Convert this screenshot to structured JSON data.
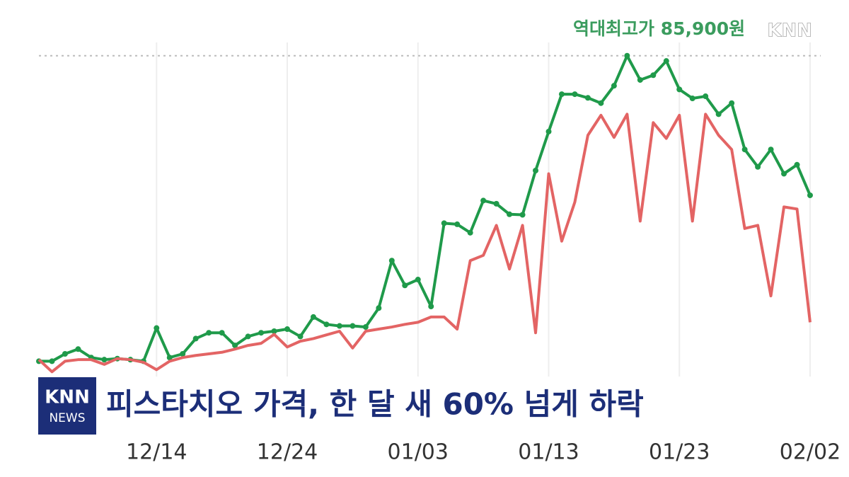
{
  "chart_data": {
    "type": "line",
    "annotation": "역대최고가 85,900원",
    "reference_line": 85900,
    "categories": [
      null,
      null,
      null,
      null,
      null,
      null,
      null,
      null,
      null,
      "12/14",
      null,
      null,
      null,
      null,
      null,
      null,
      null,
      null,
      null,
      "12/24",
      null,
      null,
      null,
      null,
      null,
      null,
      null,
      null,
      null,
      "01/03",
      null,
      null,
      null,
      null,
      null,
      null,
      null,
      null,
      null,
      "01/13",
      null,
      null,
      null,
      null,
      null,
      null,
      null,
      null,
      null,
      "01/23",
      null,
      null,
      null,
      null,
      null,
      null,
      null,
      null,
      null,
      "02/02"
    ],
    "series": [
      {
        "color": "#1f9a4a",
        "markers": true,
        "values": [
          27900,
          27900,
          29300,
          30200,
          28600,
          28200,
          28400,
          28200,
          27900,
          34200,
          28600,
          29300,
          32200,
          33300,
          33300,
          30900,
          32600,
          33300,
          33600,
          34000,
          32600,
          36300,
          34900,
          34600,
          34600,
          34400,
          38000,
          47000,
          42300,
          43400,
          38300,
          54100,
          53900,
          52300,
          58400,
          57800,
          55800,
          55700,
          64100,
          71500,
          78600,
          78600,
          77900,
          76900,
          80200,
          85900,
          81300,
          82200,
          84900,
          79500,
          77800,
          78200,
          74800,
          76900,
          68100,
          64800,
          68100,
          63500,
          65200,
          59400
        ]
      },
      {
        "color": "#e36464",
        "markers": false,
        "values": [
          28200,
          25900,
          27900,
          28200,
          28200,
          27300,
          28400,
          28200,
          27700,
          26300,
          27900,
          28600,
          29000,
          29300,
          29600,
          30200,
          30900,
          31300,
          33000,
          30600,
          31700,
          32200,
          32900,
          33600,
          30400,
          33600,
          34000,
          34400,
          34900,
          35300,
          36300,
          36300,
          34000,
          47000,
          48000,
          53700,
          45400,
          53700,
          33300,
          63500,
          50700,
          58100,
          70800,
          74600,
          70400,
          74800,
          54500,
          73200,
          70200,
          74600,
          54500,
          74800,
          70800,
          68100,
          53100,
          53700,
          40300,
          57200,
          56800,
          35300
        ]
      }
    ],
    "ylim": [
      25000,
      86000
    ],
    "grid": true
  },
  "watermark": "KNN",
  "logo": {
    "top": "KNN",
    "bottom": "NEWS"
  },
  "caption": "피스타치오 가격, 한 달 새 60% 넘게 하락"
}
